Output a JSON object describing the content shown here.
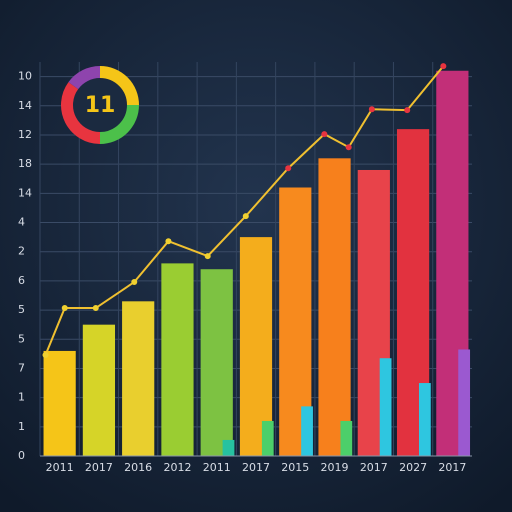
{
  "chart_data": {
    "type": "bar",
    "categories": [
      "2011",
      "2017",
      "2016",
      "2012",
      "2011",
      "2017",
      "2015",
      "2019",
      "2017",
      "2027",
      "2017"
    ],
    "values": [
      3.6,
      4.5,
      5.3,
      6.6,
      6.4,
      7.5,
      9.2,
      10.2,
      9.8,
      11.2,
      13.2
    ],
    "colors": [
      "#f5c518",
      "#d6d428",
      "#e9cf2e",
      "#9acd32",
      "#7dc242",
      "#f4ad1c",
      "#f78a1e",
      "#f7801c",
      "#e8434a",
      "#e2323f",
      "#c22f78"
    ],
    "secondary": {
      "values": [
        null,
        null,
        null,
        null,
        0.55,
        1.2,
        1.7,
        1.2,
        3.35,
        2.5,
        3.65
      ],
      "colors": [
        "#000000",
        "#000000",
        "#000000",
        "#000000",
        "#27c2a0",
        "#4ccf6a",
        "#2ec6e0",
        "#4ccf6a",
        "#2ec6e0",
        "#2ec6e0",
        "#9b59d0"
      ]
    },
    "line": {
      "x": [
        -0.36,
        0.13,
        0.92,
        1.9,
        2.77,
        3.77,
        4.74,
        5.82,
        6.74,
        7.36,
        7.95,
        8.85,
        9.77
      ],
      "values": [
        3.46,
        5.07,
        5.07,
        5.96,
        7.36,
        6.85,
        8.22,
        9.86,
        11.03,
        10.58,
        11.88,
        11.85,
        13.36
      ]
    },
    "xlim": [
      -0.5,
      10.5
    ],
    "ylim": [
      0,
      13.5
    ],
    "yticks": [
      0,
      {
        "value": 1,
        "label": "1"
      },
      {
        "value": 2,
        "label": "1"
      },
      {
        "value": 3,
        "label": "7"
      },
      {
        "value": 4,
        "label": "5"
      },
      {
        "value": 5,
        "label": "5"
      },
      {
        "value": 6,
        "label": "6"
      },
      {
        "value": 7,
        "label": "2"
      },
      {
        "value": 8,
        "label": "4"
      },
      {
        "value": 9,
        "label": "14"
      },
      {
        "value": 10,
        "label": "18"
      },
      {
        "value": 11,
        "label": "12"
      },
      {
        "value": 12,
        "label": "14"
      },
      {
        "value": 13,
        "label": "10"
      }
    ],
    "grid": true,
    "donut": {
      "label": "11",
      "values": [
        25,
        25,
        35,
        15
      ],
      "colors": [
        "#f5c518",
        "#4cc04a",
        "#e8343f",
        "#8e44ad"
      ]
    }
  }
}
